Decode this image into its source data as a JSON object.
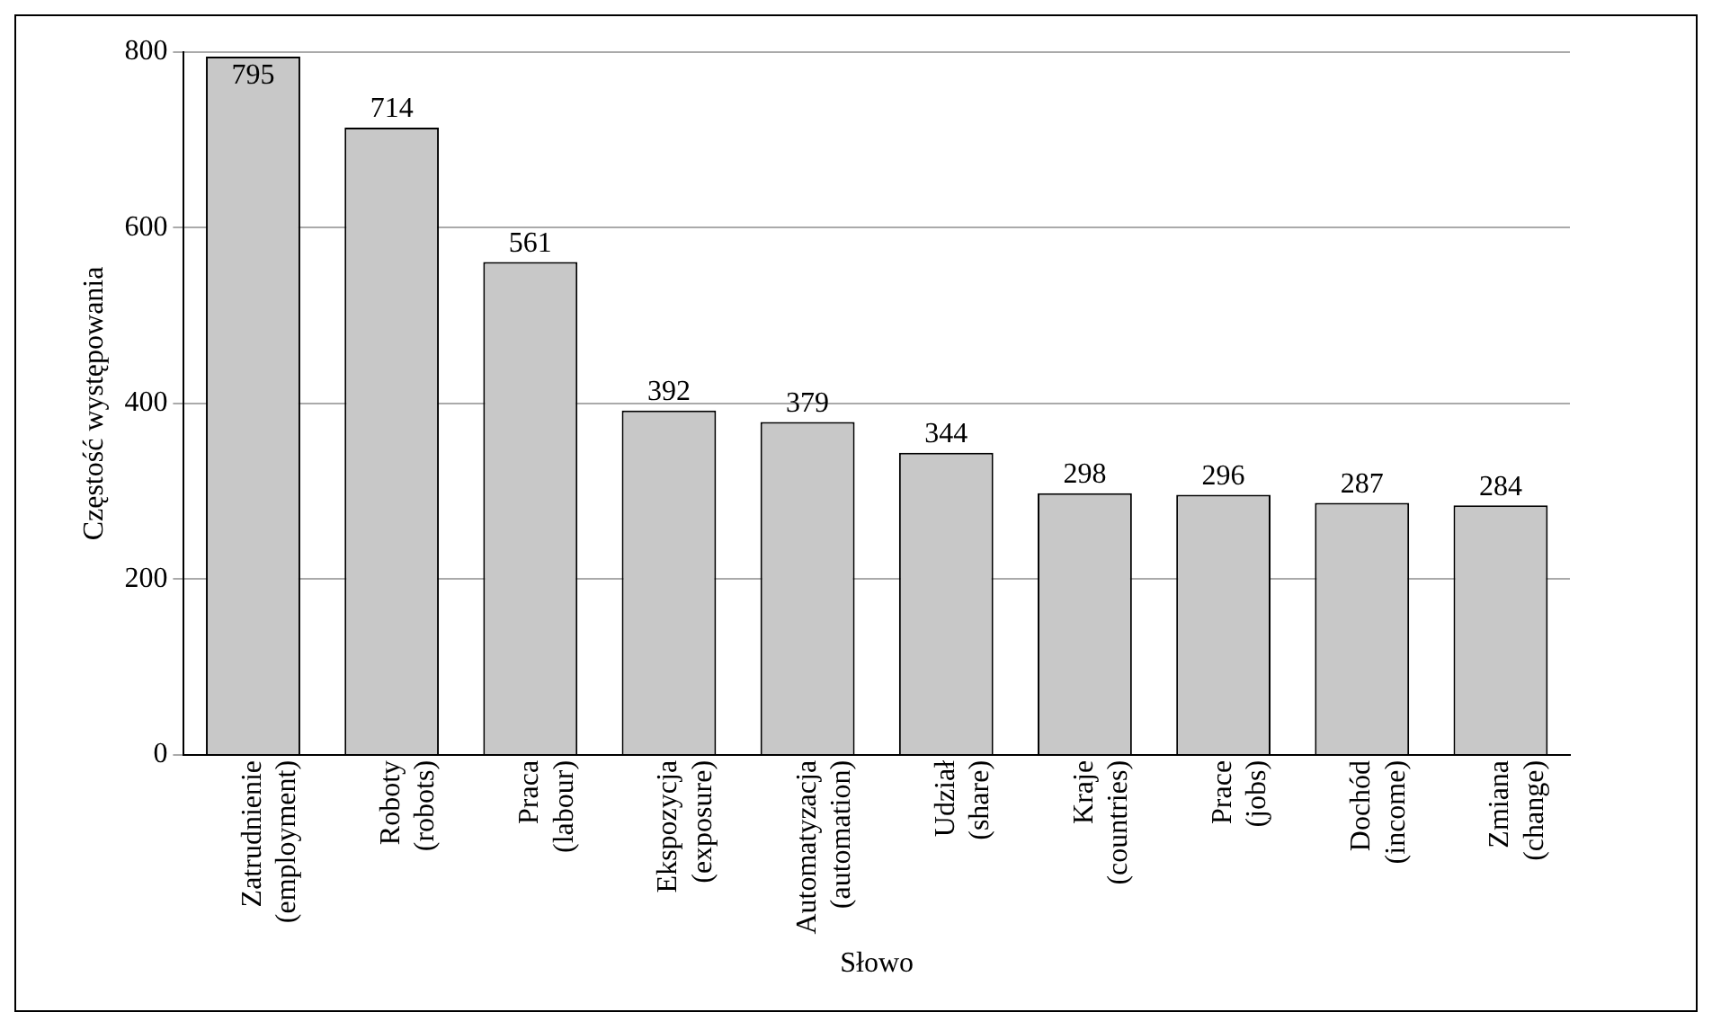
{
  "chart_data": {
    "type": "bar",
    "xlabel": "Słowo",
    "ylabel": "Częstość występowania",
    "categories": [
      "Zatrudnienie\n(employment)",
      "Roboty\n(robots)",
      "Praca\n(labour)",
      "Ekspozycja\n(exposure)",
      "Automatyzacja\n(automation)",
      "Udział\n(share)",
      "Kraje\n(countries)",
      "Prace\n(jobs)",
      "Dochód\n(income)",
      "Zmiana\n(change)"
    ],
    "values": [
      795,
      714,
      561,
      392,
      379,
      344,
      298,
      296,
      287,
      284
    ],
    "color": "#c8c8c8",
    "ylim": [
      0,
      800
    ],
    "yticks": [
      0,
      200,
      400,
      600,
      800
    ],
    "grid": "y",
    "data_labels": true,
    "legend": false
  }
}
